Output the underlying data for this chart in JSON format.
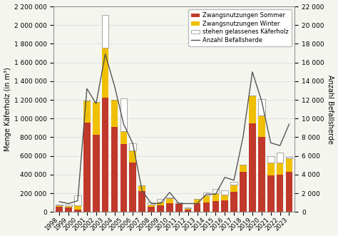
{
  "years": [
    1998,
    1999,
    2000,
    2001,
    2002,
    2003,
    2004,
    2005,
    2006,
    2007,
    2008,
    2009,
    2010,
    2011,
    2012,
    2013,
    2014,
    2015,
    2016,
    2017,
    2018,
    2019,
    2020,
    2021,
    2022,
    2023
  ],
  "sommer": [
    55000,
    50000,
    25000,
    960000,
    830000,
    1220000,
    910000,
    730000,
    530000,
    220000,
    55000,
    70000,
    95000,
    85000,
    25000,
    95000,
    105000,
    120000,
    125000,
    215000,
    430000,
    950000,
    800000,
    390000,
    400000,
    430000
  ],
  "winter": [
    15000,
    15000,
    45000,
    230000,
    350000,
    540000,
    290000,
    135000,
    125000,
    65000,
    20000,
    42000,
    50000,
    12000,
    12000,
    45000,
    75000,
    78000,
    58000,
    78000,
    78000,
    295000,
    235000,
    138000,
    130000,
    142000
  ],
  "stehen": [
    8000,
    10000,
    110000,
    0,
    0,
    350000,
    0,
    350000,
    80000,
    0,
    25000,
    25000,
    8000,
    4000,
    12000,
    0,
    25000,
    48000,
    48000,
    28000,
    0,
    0,
    175000,
    68000,
    105000,
    18000
  ],
  "befallsherde": [
    1100,
    900,
    1200,
    13200,
    11600,
    16900,
    13500,
    9400,
    7300,
    2300,
    900,
    900,
    2100,
    900,
    900,
    900,
    1900,
    1900,
    3700,
    3400,
    8100,
    15000,
    11900,
    7400,
    7100,
    9400
  ],
  "color_sommer": "#c0392b",
  "color_winter": "#f0c000",
  "color_stehen": "#ffffff",
  "color_stehen_edge": "#999999",
  "color_line": "#555555",
  "ylabel_left": "Menge Käferholz (in m³)",
  "ylabel_right": "Anzahl Befallsherde",
  "ylim_left": [
    0,
    2200000
  ],
  "ylim_right": [
    0,
    22000
  ],
  "legend_labels": [
    "Zwangsnutzungen Sommer",
    "Zwangsnutzungen Winter",
    "stehen gelassenes Käferholz",
    "Anzahl Befallsherde"
  ],
  "yticks_left": [
    0,
    200000,
    400000,
    600000,
    800000,
    1000000,
    1200000,
    1400000,
    1600000,
    1800000,
    2000000,
    2200000
  ],
  "yticks_right": [
    0,
    2000,
    4000,
    6000,
    8000,
    10000,
    12000,
    14000,
    16000,
    18000,
    20000,
    22000
  ],
  "bg_color": "#f5f5f0",
  "grid_color": "#dddddd"
}
